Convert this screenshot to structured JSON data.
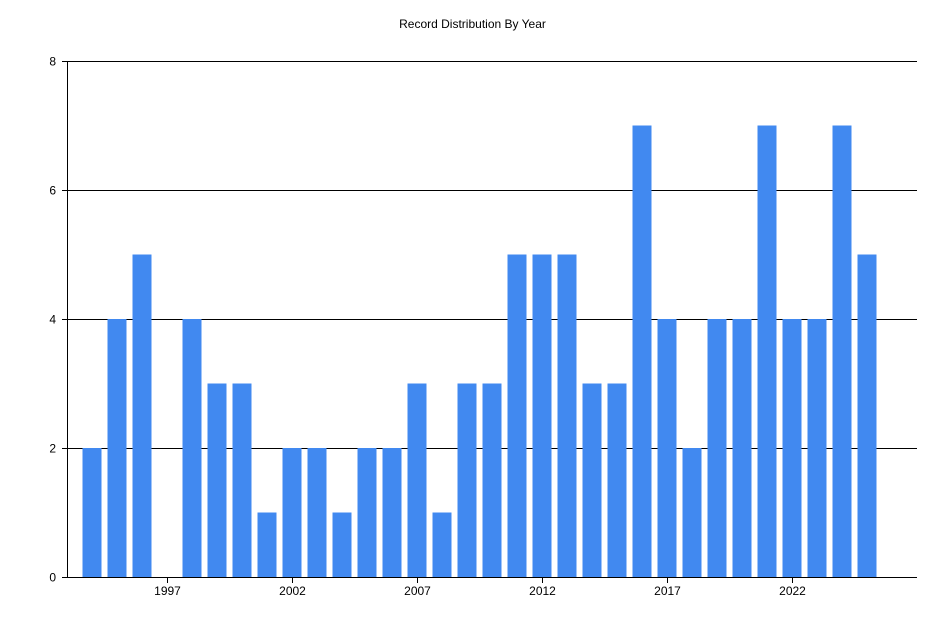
{
  "chart_data": {
    "type": "bar",
    "title": "Record Distribution By Year",
    "xlabel": "",
    "ylabel": "",
    "categories": [
      1994,
      1995,
      1996,
      1997,
      1998,
      1999,
      2000,
      2001,
      2002,
      2003,
      2004,
      2005,
      2006,
      2007,
      2008,
      2009,
      2010,
      2011,
      2012,
      2013,
      2014,
      2015,
      2016,
      2017,
      2018,
      2019,
      2020,
      2021,
      2022,
      2023,
      2024,
      2025
    ],
    "values": [
      2,
      4,
      5,
      0,
      4,
      3,
      3,
      1,
      2,
      2,
      1,
      2,
      2,
      3,
      1,
      3,
      3,
      5,
      5,
      5,
      3,
      3,
      7,
      4,
      2,
      4,
      4,
      7,
      4,
      4,
      7,
      5
    ],
    "xtick_labels": [
      "1997",
      "2002",
      "2007",
      "2012",
      "2017",
      "2022"
    ],
    "ytick_labels": [
      "0",
      "2",
      "4",
      "6",
      "8"
    ],
    "ylim": [
      0,
      8
    ],
    "grid": "horizontal",
    "legend": "none",
    "bar_color": "#4189F0",
    "axis_color": "#000000"
  }
}
